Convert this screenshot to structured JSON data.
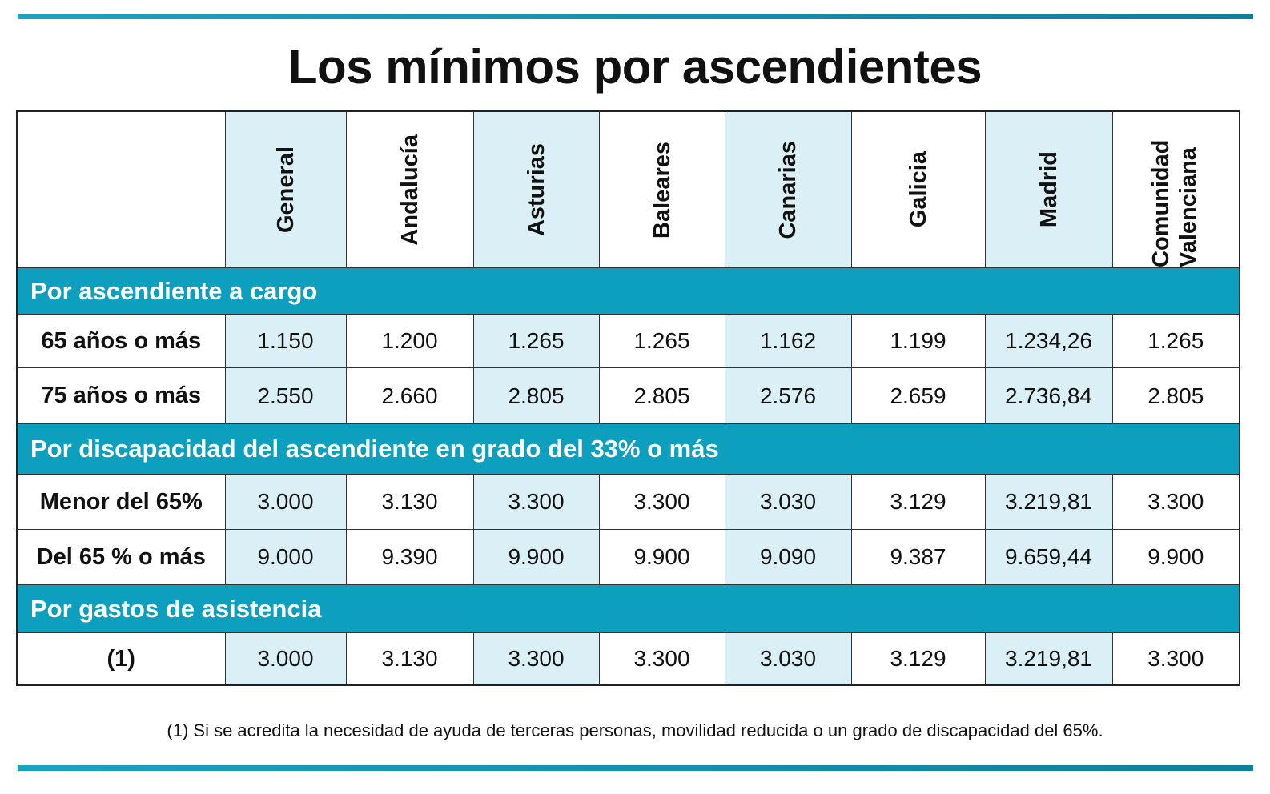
{
  "title": "Los mínimos por ascendientes",
  "columns": [
    "General",
    "Andalucía",
    "Asturias",
    "Baleares",
    "Canarias",
    "Galicia",
    "Madrid",
    "Comunidad Valenciana"
  ],
  "sections": [
    {
      "heading": "Por ascendiente a cargo",
      "rows": [
        {
          "label": "65 años o más",
          "values": [
            "1.150",
            "1.200",
            "1.265",
            "1.265",
            "1.162",
            "1.199",
            "1.234,26",
            "1.265"
          ]
        },
        {
          "label": "75 años o más",
          "values": [
            "2.550",
            "2.660",
            "2.805",
            "2.805",
            "2.576",
            "2.659",
            "2.736,84",
            "2.805"
          ]
        }
      ]
    },
    {
      "heading": "Por discapacidad del ascendiente en grado del 33% o más",
      "rows": [
        {
          "label": "Menor del 65%",
          "values": [
            "3.000",
            "3.130",
            "3.300",
            "3.300",
            "3.030",
            "3.129",
            "3.219,81",
            "3.300"
          ]
        },
        {
          "label": "Del 65 % o más",
          "values": [
            "9.000",
            "9.390",
            "9.900",
            "9.900",
            "9.090",
            "9.387",
            "9.659,44",
            "9.900"
          ]
        }
      ]
    },
    {
      "heading": "Por gastos de asistencia",
      "rows": [
        {
          "label": "(1)",
          "values": [
            "3.000",
            "3.130",
            "3.300",
            "3.300",
            "3.030",
            "3.129",
            "3.219,81",
            "3.300"
          ]
        }
      ]
    }
  ],
  "footnote": "(1) Si se acredita la necesidad de ayuda de terceras personas, movilidad reducida o un grado de discapacidad del 65%.",
  "colors": {
    "accent": "#0d9fbe",
    "shaded_column": "#dbf0f6",
    "rule": "#1aa3bf"
  },
  "chart_data": {
    "type": "table",
    "title": "Los mínimos por ascendientes",
    "columns": [
      "General",
      "Andalucía",
      "Asturias",
      "Baleares",
      "Canarias",
      "Galicia",
      "Madrid",
      "Comunidad Valenciana"
    ],
    "groups": [
      {
        "name": "Por ascendiente a cargo",
        "rows": [
          {
            "label": "65 años o más",
            "values": [
              1150,
              1200,
              1265,
              1265,
              1162,
              1199,
              1234.26,
              1265
            ]
          },
          {
            "label": "75 años o más",
            "values": [
              2550,
              2660,
              2805,
              2805,
              2576,
              2659,
              2736.84,
              2805
            ]
          }
        ]
      },
      {
        "name": "Por discapacidad del ascendiente en grado del 33% o más",
        "rows": [
          {
            "label": "Menor del 65%",
            "values": [
              3000,
              3130,
              3300,
              3300,
              3030,
              3129,
              3219.81,
              3300
            ]
          },
          {
            "label": "Del 65 % o más",
            "values": [
              9000,
              9390,
              9900,
              9900,
              9090,
              9387,
              9659.44,
              9900
            ]
          }
        ]
      },
      {
        "name": "Por gastos de asistencia",
        "rows": [
          {
            "label": "(1)",
            "values": [
              3000,
              3130,
              3300,
              3300,
              3030,
              3129,
              3219.81,
              3300
            ]
          }
        ]
      }
    ]
  }
}
